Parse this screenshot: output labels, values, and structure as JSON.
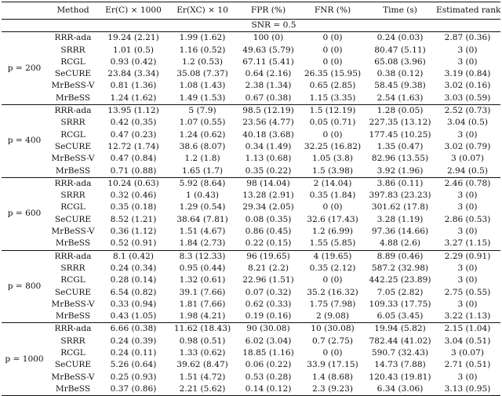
{
  "headers": {
    "method": "Method",
    "er_c": "Er(C) × 1000",
    "er_xc": "Er(XC) × 10",
    "fpr": "FPR (%)",
    "fnr": "FNR (%)",
    "time": "Time (s)",
    "rank": "Estimated rank"
  },
  "snr_label": "SNR = 0.5",
  "groups": [
    {
      "p_label": "p = 200",
      "rows": [
        {
          "method": "RRR-ada",
          "er_c": "19.24 (2.21)",
          "er_xc": "1.99 (1.62)",
          "fpr": "100 (0)",
          "fnr": "0 (0)",
          "time": "0.24 (0.03)",
          "rank": "2.87 (0.36)"
        },
        {
          "method": "SRRR",
          "er_c": "1.01 (0.5)",
          "er_xc": "1.16 (0.52)",
          "fpr": "49.63 (5.79)",
          "fnr": "0 (0)",
          "time": "80.47 (5.11)",
          "rank": "3 (0)"
        },
        {
          "method": "RCGL",
          "er_c": "0.93 (0.42)",
          "er_xc": "1.2 (0.53)",
          "fpr": "67.11 (5.41)",
          "fnr": "0 (0)",
          "time": "65.08 (3.96)",
          "rank": "3 (0)"
        },
        {
          "method": "SeCURE",
          "er_c": "23.84 (3.34)",
          "er_xc": "35.08 (7.37)",
          "fpr": "0.64 (2.16)",
          "fnr": "26.35 (15.95)",
          "time": "0.38 (0.12)",
          "rank": "3.19 (0.84)"
        },
        {
          "method": "MrBeSS-V",
          "er_c": "0.81 (1.36)",
          "er_xc": "1.08 (1.43)",
          "fpr": "2.38 (1.34)",
          "fnr": "0.65 (2.85)",
          "time": "58.45 (9.38)",
          "rank": "3.02 (0.16)"
        },
        {
          "method": "MrBeSS",
          "er_c": "1.24 (1.62)",
          "er_xc": "1.49 (1.53)",
          "fpr": "0.67 (0.38)",
          "fnr": "1.15 (3.35)",
          "time": "2.54 (1.63)",
          "rank": "3.03 (0.59)"
        }
      ]
    },
    {
      "p_label": "p = 400",
      "rows": [
        {
          "method": "RRR-ada",
          "er_c": "13.95 (1.12)",
          "er_xc": "5 (7.9)",
          "fpr": "98.5 (12.19)",
          "fnr": "1.5 (12.19)",
          "time": "1.28 (0.05)",
          "rank": "2.52 (0.73)"
        },
        {
          "method": "SRRR",
          "er_c": "0.42 (0.35)",
          "er_xc": "1.07 (0.55)",
          "fpr": "23.56 (4.77)",
          "fnr": "0.05 (0.71)",
          "time": "227.35 (13.12)",
          "rank": "3.04 (0.5)"
        },
        {
          "method": "RCGL",
          "er_c": "0.47 (0.23)",
          "er_xc": "1.24 (0.62)",
          "fpr": "40.18 (3.68)",
          "fnr": "0 (0)",
          "time": "177.45 (10.25)",
          "rank": "3 (0)"
        },
        {
          "method": "SeCURE",
          "er_c": "12.72 (1.74)",
          "er_xc": "38.6 (8.07)",
          "fpr": "0.34 (1.49)",
          "fnr": "32.25 (16.82)",
          "time": "1.35 (0.47)",
          "rank": "3.02 (0.79)"
        },
        {
          "method": "MrBeSS-V",
          "er_c": "0.47 (0.84)",
          "er_xc": "1.2 (1.8)",
          "fpr": "1.13 (0.68)",
          "fnr": "1.05 (3.8)",
          "time": "82.96 (13.55)",
          "rank": "3 (0.07)"
        },
        {
          "method": "MrBeSS",
          "er_c": "0.71 (0.88)",
          "er_xc": "1.65 (1.7)",
          "fpr": "0.35 (0.22)",
          "fnr": "1.5 (3.98)",
          "time": "3.92 (1.96)",
          "rank": "2.94 (0.5)"
        }
      ]
    },
    {
      "p_label": "p = 600",
      "rows": [
        {
          "method": "RRR-ada",
          "er_c": "10.24 (0.63)",
          "er_xc": "5.92 (8.64)",
          "fpr": "98 (14.04)",
          "fnr": "2 (14.04)",
          "time": "3.86 (0.11)",
          "rank": "2.46 (0.78)"
        },
        {
          "method": "SRRR",
          "er_c": "0.32 (0.46)",
          "er_xc": "1 (0.43)",
          "fpr": "13.28 (2.91)",
          "fnr": "0.35 (1.84)",
          "time": "397.83 (23.23)",
          "rank": "3 (0)"
        },
        {
          "method": "RCGL",
          "er_c": "0.35 (0.18)",
          "er_xc": "1.29 (0.54)",
          "fpr": "29.34 (2.05)",
          "fnr": "0 (0)",
          "time": "301.62 (17.8)",
          "rank": "3 (0)"
        },
        {
          "method": "SeCURE",
          "er_c": "8.52 (1.21)",
          "er_xc": "38.64 (7.81)",
          "fpr": "0.08 (0.35)",
          "fnr": "32.6 (17.43)",
          "time": "3.28 (1.19)",
          "rank": "2.86 (0.53)"
        },
        {
          "method": "MrBeSS-V",
          "er_c": "0.36 (1.12)",
          "er_xc": "1.51 (4.67)",
          "fpr": "0.86 (0.45)",
          "fnr": "1.2 (6.99)",
          "time": "97.36 (14.66)",
          "rank": "3 (0)"
        },
        {
          "method": "MrBeSS",
          "er_c": "0.52 (0.91)",
          "er_xc": "1.84 (2.73)",
          "fpr": "0.22 (0.15)",
          "fnr": "1.55 (5.85)",
          "time": "4.88 (2.6)",
          "rank": "3.27 (1.15)"
        }
      ]
    },
    {
      "p_label": "p = 800",
      "rows": [
        {
          "method": "RRR-ada",
          "er_c": "8.1 (0.42)",
          "er_xc": "8.3 (12.33)",
          "fpr": "96 (19.65)",
          "fnr": "4 (19.65)",
          "time": "8.89 (0.46)",
          "rank": "2.29 (0.91)"
        },
        {
          "method": "SRRR",
          "er_c": "0.24 (0.34)",
          "er_xc": "0.95 (0.44)",
          "fpr": "8.21 (2.2)",
          "fnr": "0.35 (2.12)",
          "time": "587.2 (32.98)",
          "rank": "3 (0)"
        },
        {
          "method": "RCGL",
          "er_c": "0.28 (0.14)",
          "er_xc": "1.32 (0.61)",
          "fpr": "22.96 (1.51)",
          "fnr": "0 (0)",
          "time": "442.25 (23.89)",
          "rank": "3 (0)"
        },
        {
          "method": "SeCURE",
          "er_c": "6.54 (0.82)",
          "er_xc": "39.1 (7.66)",
          "fpr": "0.07 (0.32)",
          "fnr": "35.2 (16.32)",
          "time": "7.05 (2.82)",
          "rank": "2.75 (0.55)"
        },
        {
          "method": "MrBeSS-V",
          "er_c": "0.33 (0.94)",
          "er_xc": "1.81 (7.66)",
          "fpr": "0.62 (0.33)",
          "fnr": "1.75 (7.98)",
          "time": "109.33 (17.75)",
          "rank": "3 (0)"
        },
        {
          "method": "MrBeSS",
          "er_c": "0.43 (1.05)",
          "er_xc": "1.98 (4.21)",
          "fpr": "0.19 (0.16)",
          "fnr": "2 (9.08)",
          "time": "6.05 (3.45)",
          "rank": "3.22 (1.13)"
        }
      ]
    },
    {
      "p_label": "p = 1000",
      "rows": [
        {
          "method": "RRR-ada",
          "er_c": "6.66 (0.38)",
          "er_xc": "11.62 (18.43)",
          "fpr": "90 (30.08)",
          "fnr": "10 (30.08)",
          "time": "19.94 (5.82)",
          "rank": "2.15 (1.04)"
        },
        {
          "method": "SRRR",
          "er_c": "0.24 (0.39)",
          "er_xc": "0.98 (0.51)",
          "fpr": "6.02 (3.04)",
          "fnr": "0.7 (2.75)",
          "time": "782.44 (41.02)",
          "rank": "3.04 (0.51)"
        },
        {
          "method": "RCGL",
          "er_c": "0.24 (0.11)",
          "er_xc": "1.33 (0.62)",
          "fpr": "18.85 (1.16)",
          "fnr": "0 (0)",
          "time": "590.7 (32.43)",
          "rank": "3 (0.07)"
        },
        {
          "method": "SeCURE",
          "er_c": "5.26 (0.64)",
          "er_xc": "39.62 (8.47)",
          "fpr": "0.06 (0.22)",
          "fnr": "33.9 (17.15)",
          "time": "14.73 (7.88)",
          "rank": "2.71 (0.51)"
        },
        {
          "method": "MrBeSS-V",
          "er_c": "0.25 (0.93)",
          "er_xc": "1.51 (4.72)",
          "fpr": "0.53 (0.28)",
          "fnr": "1.4 (8.68)",
          "time": "120.43 (19.81)",
          "rank": "3 (0)"
        },
        {
          "method": "MrBeSS",
          "er_c": "0.37 (0.86)",
          "er_xc": "2.21 (5.62)",
          "fpr": "0.14 (0.12)",
          "fnr": "2.3 (9.23)",
          "time": "6.34 (3.06)",
          "rank": "3.13 (0.95)"
        }
      ]
    }
  ]
}
